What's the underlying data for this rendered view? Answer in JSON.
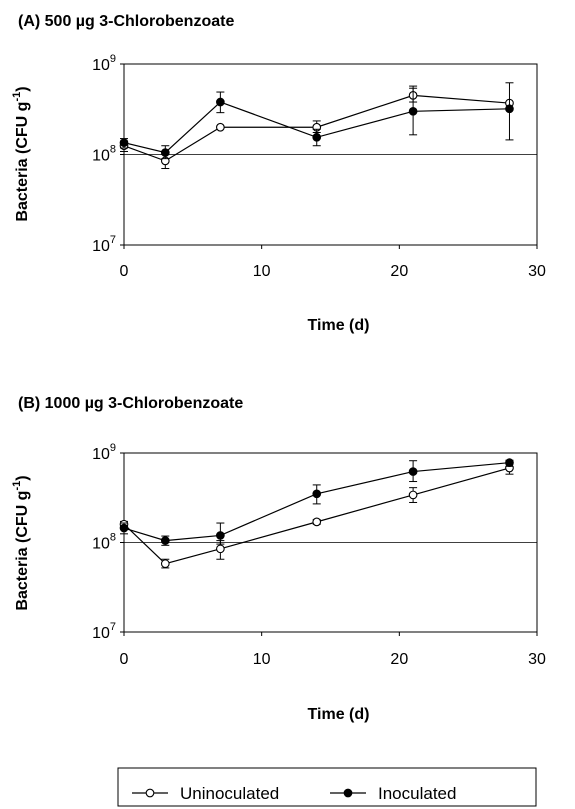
{
  "chart_data": [
    {
      "type": "line",
      "title": "(A) 500 µg 3-Chlorobenzoate",
      "xlabel": "Time (d)",
      "ylabel_main": "Bacteria (CFU g",
      "ylabel_sup": "-1",
      "ylabel_close": ")",
      "yscale": "log",
      "xlim": [
        0,
        30
      ],
      "ylim": [
        10000000,
        1000000000
      ],
      "xticks": [
        "0",
        "10",
        "20",
        "30"
      ],
      "yticks": [
        {
          "value": 1000000000,
          "base": "10",
          "exp": "9"
        },
        {
          "value": 100000000,
          "base": "10",
          "exp": "8"
        },
        {
          "value": 10000000,
          "base": "10",
          "exp": "7"
        }
      ],
      "gridlines_y": [
        100000000
      ],
      "x": [
        0,
        3,
        7,
        14,
        21,
        28
      ],
      "series": [
        {
          "name": "Uninoculated",
          "marker": "open-circle",
          "values": [
            125000000,
            85000000,
            200000000,
            200000000,
            450000000,
            370000000
          ],
          "err_low": [
            108000000,
            70000000,
            195000000,
            175000000,
            380000000,
            360000000
          ],
          "err_high": [
            140000000,
            100000000,
            205000000,
            235000000,
            540000000,
            380000000
          ]
        },
        {
          "name": "Inoculated",
          "marker": "filled-circle",
          "values": [
            135000000,
            105000000,
            380000000,
            155000000,
            300000000,
            320000000
          ],
          "err_low": [
            118000000,
            90000000,
            290000000,
            125000000,
            165000000,
            145000000
          ],
          "err_high": [
            150000000,
            125000000,
            490000000,
            190000000,
            570000000,
            620000000
          ]
        }
      ]
    },
    {
      "type": "line",
      "title": "(B) 1000 µg 3-Chlorobenzoate",
      "xlabel": "Time (d)",
      "ylabel_main": "Bacteria (CFU g",
      "ylabel_sup": "-1",
      "ylabel_close": ")",
      "yscale": "log",
      "xlim": [
        0,
        30
      ],
      "ylim": [
        10000000,
        1000000000
      ],
      "xticks": [
        "0",
        "10",
        "20",
        "30"
      ],
      "yticks": [
        {
          "value": 1000000000,
          "base": "10",
          "exp": "9"
        },
        {
          "value": 100000000,
          "base": "10",
          "exp": "8"
        },
        {
          "value": 10000000,
          "base": "10",
          "exp": "7"
        }
      ],
      "gridlines_y": [
        100000000
      ],
      "x": [
        0,
        3,
        7,
        14,
        21,
        28
      ],
      "series": [
        {
          "name": "Uninoculated",
          "marker": "open-circle",
          "values": [
            160000000,
            58000000,
            85000000,
            170000000,
            340000000,
            680000000
          ],
          "err_low": [
            150000000,
            52000000,
            65000000,
            160000000,
            280000000,
            580000000
          ],
          "err_high": [
            172000000,
            65000000,
            105000000,
            180000000,
            410000000,
            760000000
          ]
        },
        {
          "name": "Inoculated",
          "marker": "filled-circle",
          "values": [
            145000000,
            105000000,
            120000000,
            350000000,
            620000000,
            780000000
          ],
          "err_low": [
            125000000,
            93000000,
            96000000,
            270000000,
            480000000,
            710000000
          ],
          "err_high": [
            165000000,
            118000000,
            165000000,
            440000000,
            820000000,
            830000000
          ]
        }
      ]
    }
  ],
  "legend": {
    "placement": "bottom",
    "entries": [
      {
        "label": "Uninoculated",
        "marker": "open-circle"
      },
      {
        "label": "Inoculated",
        "marker": "filled-circle"
      }
    ]
  }
}
